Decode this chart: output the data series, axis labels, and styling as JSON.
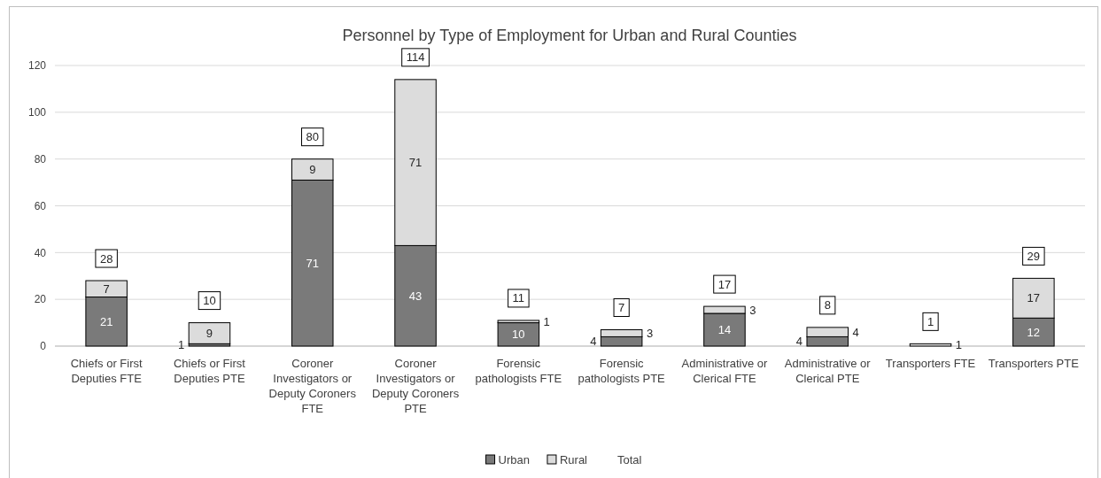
{
  "chart_data": {
    "type": "bar",
    "title": "Personnel by Type of Employment for Urban and Rural Counties",
    "categories": [
      "Chiefs or First Deputies FTE",
      "Chiefs or First Deputies PTE",
      "Coroner Investigators or Deputy Coroners FTE",
      "Coroner Investigators or Deputy Coroners PTE",
      "Forensic pathologists FTE",
      "Forensic pathologists PTE",
      "Administrative or Clerical FTE",
      "Administrative or Clerical PTE",
      "Transporters FTE",
      "Transporters PTE"
    ],
    "series": [
      {
        "name": "Urban",
        "color": "#7a7a7a",
        "values": [
          21,
          1,
          71,
          43,
          10,
          4,
          14,
          4,
          null,
          12
        ]
      },
      {
        "name": "Rural",
        "color": "#dcdcdc",
        "values": [
          7,
          9,
          9,
          71,
          1,
          3,
          3,
          4,
          1,
          17
        ]
      }
    ],
    "stacked": true,
    "ylim": [
      0,
      120
    ],
    "yticks": [
      0,
      20,
      40,
      60,
      80,
      100,
      120
    ],
    "grid": "y",
    "legend": "bottom",
    "data_labels": true,
    "totals": [
      "28",
      "10",
      "80",
      "114",
      "11",
      "7",
      "17",
      "8",
      "1",
      "29"
    ],
    "annotations": [
      "Total"
    ]
  }
}
